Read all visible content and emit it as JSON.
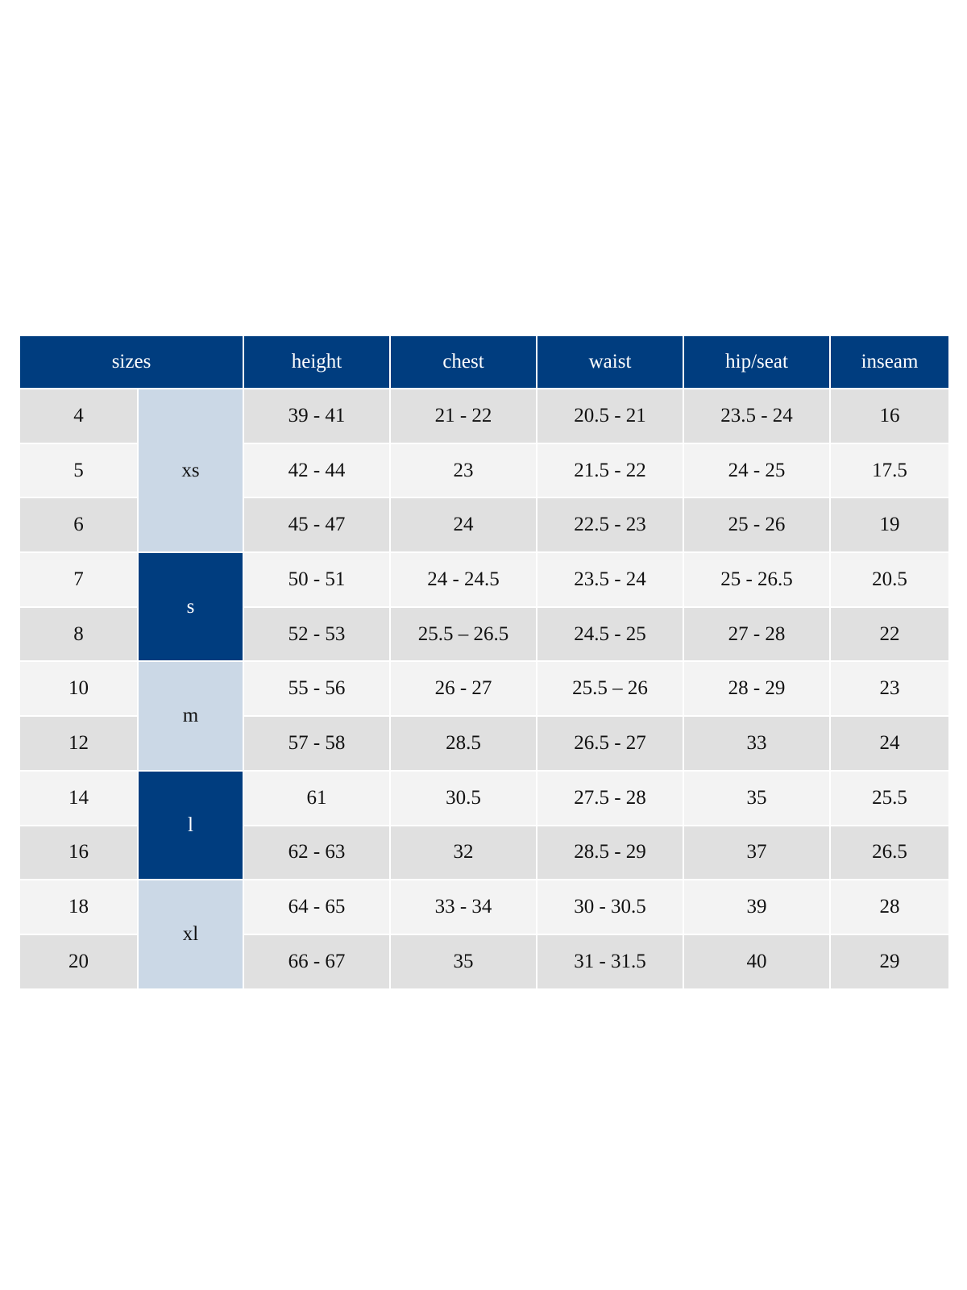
{
  "table": {
    "header": [
      "sizes",
      "height",
      "chest",
      "waist",
      "hip/seat",
      "inseam"
    ],
    "groups": [
      {
        "label": "xs",
        "rows": 3
      },
      {
        "label": "s",
        "rows": 2
      },
      {
        "label": "m",
        "rows": 2
      },
      {
        "label": "l",
        "rows": 2
      },
      {
        "label": "xl",
        "rows": 2
      }
    ],
    "rows": [
      [
        "4",
        "39 - 41",
        "21 - 22",
        "20.5 - 21",
        "23.5 - 24",
        "16"
      ],
      [
        "5",
        "42 - 44",
        "23",
        "21.5 - 22",
        "24 - 25",
        "17.5"
      ],
      [
        "6",
        "45 - 47",
        "24",
        "22.5 - 23",
        "25 - 26",
        "19"
      ],
      [
        "7",
        "50 - 51",
        "24 - 24.5",
        "23.5 - 24",
        "25 - 26.5",
        "20.5"
      ],
      [
        "8",
        "52 - 53",
        "25.5 – 26.5",
        "24.5 - 25",
        "27 - 28",
        "22"
      ],
      [
        "10",
        "55 - 56",
        "26 - 27",
        "25.5 – 26",
        "28 - 29",
        "23"
      ],
      [
        "12",
        "57 - 58",
        "28.5",
        "26.5 - 27",
        "33",
        "24"
      ],
      [
        "14",
        "61",
        "30.5",
        "27.5 - 28",
        "35",
        "25.5"
      ],
      [
        "16",
        "62 - 63",
        "32",
        "28.5 - 29",
        "37",
        "26.5"
      ],
      [
        "18",
        "64 - 65",
        "33 - 34",
        "30 - 30.5",
        "39",
        "28"
      ],
      [
        "20",
        "66 - 67",
        "35",
        "31 - 31.5",
        "40",
        "29"
      ]
    ]
  }
}
